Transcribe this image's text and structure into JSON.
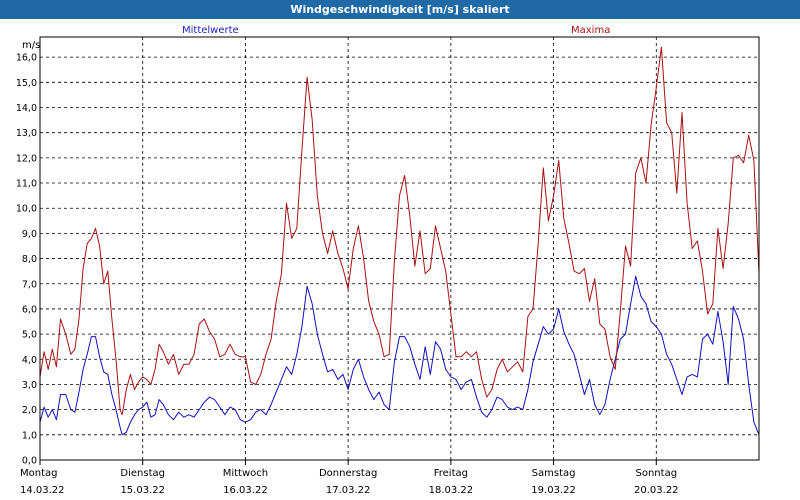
{
  "chart_data": {
    "type": "line",
    "title": "Windgeschwindigkeit [m/s] skaliert",
    "ylabel": "m/s",
    "ylim": [
      0,
      16.8
    ],
    "yticks": [
      "0,0",
      "1,0",
      "2,0",
      "3,0",
      "4,0",
      "5,0",
      "6,0",
      "7,0",
      "8,0",
      "9,0",
      "10,0",
      "11,0",
      "12,0",
      "13,0",
      "14,0",
      "15,0",
      "16,0"
    ],
    "xlim": [
      0,
      7
    ],
    "x_day_labels": [
      {
        "day": "Montag",
        "date": "14.03.22"
      },
      {
        "day": "Dienstag",
        "date": "15.03.22"
      },
      {
        "day": "Mittwoch",
        "date": "16.03.22"
      },
      {
        "day": "Donnerstag",
        "date": "17.03.22"
      },
      {
        "day": "Freitag",
        "date": "18.03.22"
      },
      {
        "day": "Samstag",
        "date": "19.03.22"
      },
      {
        "day": "Sonntag",
        "date": "20.03.22"
      }
    ],
    "grid": true,
    "legend_placement": "top",
    "series": [
      {
        "name": "Mittelwerte",
        "color": "#1010c0",
        "points": [
          [
            0,
            1.5
          ],
          [
            0.04,
            2.1
          ],
          [
            0.08,
            1.7
          ],
          [
            0.12,
            2.0
          ],
          [
            0.16,
            1.6
          ],
          [
            0.2,
            2.6
          ],
          [
            0.25,
            2.6
          ],
          [
            0.3,
            2.0
          ],
          [
            0.34,
            1.9
          ],
          [
            0.38,
            2.7
          ],
          [
            0.42,
            3.6
          ],
          [
            0.46,
            4.2
          ],
          [
            0.5,
            4.9
          ],
          [
            0.54,
            4.9
          ],
          [
            0.58,
            4.1
          ],
          [
            0.62,
            3.5
          ],
          [
            0.66,
            3.4
          ],
          [
            0.7,
            2.6
          ],
          [
            0.74,
            2.0
          ],
          [
            0.78,
            1.3
          ],
          [
            0.8,
            1.0
          ],
          [
            0.84,
            1.1
          ],
          [
            0.88,
            1.5
          ],
          [
            0.92,
            1.8
          ],
          [
            0.96,
            2.0
          ],
          [
            1.0,
            2.1
          ],
          [
            1.04,
            2.3
          ],
          [
            1.08,
            1.7
          ],
          [
            1.12,
            1.8
          ],
          [
            1.16,
            2.4
          ],
          [
            1.2,
            2.2
          ],
          [
            1.25,
            1.8
          ],
          [
            1.3,
            1.6
          ],
          [
            1.35,
            1.9
          ],
          [
            1.4,
            1.7
          ],
          [
            1.45,
            1.8
          ],
          [
            1.5,
            1.7
          ],
          [
            1.55,
            2.0
          ],
          [
            1.6,
            2.3
          ],
          [
            1.65,
            2.5
          ],
          [
            1.7,
            2.4
          ],
          [
            1.75,
            2.1
          ],
          [
            1.8,
            1.8
          ],
          [
            1.85,
            2.1
          ],
          [
            1.9,
            2.0
          ],
          [
            1.95,
            1.6
          ],
          [
            2.0,
            1.5
          ],
          [
            2.05,
            1.6
          ],
          [
            2.1,
            1.9
          ],
          [
            2.15,
            2.0
          ],
          [
            2.2,
            1.8
          ],
          [
            2.25,
            2.2
          ],
          [
            2.3,
            2.7
          ],
          [
            2.35,
            3.2
          ],
          [
            2.4,
            3.7
          ],
          [
            2.45,
            3.4
          ],
          [
            2.5,
            4.2
          ],
          [
            2.55,
            5.3
          ],
          [
            2.6,
            6.9
          ],
          [
            2.65,
            6.2
          ],
          [
            2.7,
            5.0
          ],
          [
            2.75,
            4.2
          ],
          [
            2.8,
            3.5
          ],
          [
            2.85,
            3.6
          ],
          [
            2.9,
            3.2
          ],
          [
            2.95,
            3.4
          ],
          [
            3.0,
            2.8
          ],
          [
            3.05,
            3.6
          ],
          [
            3.1,
            4.0
          ],
          [
            3.15,
            3.3
          ],
          [
            3.2,
            2.8
          ],
          [
            3.25,
            2.4
          ],
          [
            3.3,
            2.7
          ],
          [
            3.35,
            2.2
          ],
          [
            3.4,
            2.0
          ],
          [
            3.45,
            3.9
          ],
          [
            3.5,
            4.9
          ],
          [
            3.55,
            4.9
          ],
          [
            3.6,
            4.5
          ],
          [
            3.65,
            3.8
          ],
          [
            3.7,
            3.2
          ],
          [
            3.75,
            4.5
          ],
          [
            3.8,
            3.4
          ],
          [
            3.85,
            4.7
          ],
          [
            3.9,
            4.4
          ],
          [
            3.95,
            3.6
          ],
          [
            4.0,
            3.3
          ],
          [
            4.05,
            3.2
          ],
          [
            4.1,
            2.8
          ],
          [
            4.15,
            3.1
          ],
          [
            4.2,
            3.2
          ],
          [
            4.25,
            2.5
          ],
          [
            4.3,
            1.9
          ],
          [
            4.35,
            1.7
          ],
          [
            4.4,
            2.0
          ],
          [
            4.45,
            2.5
          ],
          [
            4.5,
            2.4
          ],
          [
            4.55,
            2.1
          ],
          [
            4.6,
            2.0
          ],
          [
            4.65,
            2.1
          ],
          [
            4.7,
            2.0
          ],
          [
            4.75,
            2.8
          ],
          [
            4.8,
            3.9
          ],
          [
            4.85,
            4.6
          ],
          [
            4.9,
            5.3
          ],
          [
            4.95,
            5.0
          ],
          [
            5.0,
            5.2
          ],
          [
            5.05,
            6.0
          ],
          [
            5.1,
            5.1
          ],
          [
            5.15,
            4.6
          ],
          [
            5.2,
            4.2
          ],
          [
            5.25,
            3.4
          ],
          [
            5.3,
            2.6
          ],
          [
            5.35,
            3.2
          ],
          [
            5.4,
            2.2
          ],
          [
            5.45,
            1.8
          ],
          [
            5.5,
            2.2
          ],
          [
            5.55,
            3.2
          ],
          [
            5.6,
            4.0
          ],
          [
            5.65,
            4.8
          ],
          [
            5.7,
            5.0
          ],
          [
            5.75,
            6.2
          ],
          [
            5.8,
            7.3
          ],
          [
            5.85,
            6.5
          ],
          [
            5.9,
            6.2
          ],
          [
            5.95,
            5.5
          ],
          [
            6.0,
            5.3
          ],
          [
            6.05,
            5.0
          ],
          [
            6.1,
            4.2
          ],
          [
            6.15,
            3.8
          ],
          [
            6.2,
            3.2
          ],
          [
            6.25,
            2.6
          ],
          [
            6.3,
            3.3
          ],
          [
            6.35,
            3.4
          ],
          [
            6.4,
            3.3
          ],
          [
            6.45,
            4.8
          ],
          [
            6.5,
            5.0
          ],
          [
            6.55,
            4.6
          ],
          [
            6.6,
            5.9
          ],
          [
            6.65,
            4.7
          ],
          [
            6.7,
            3.0
          ],
          [
            6.75,
            6.1
          ],
          [
            6.8,
            5.6
          ],
          [
            6.85,
            4.8
          ],
          [
            6.9,
            3.0
          ],
          [
            6.95,
            1.5
          ],
          [
            7.0,
            1.0
          ]
        ]
      },
      {
        "name": "Maxima",
        "color": "#aa1010",
        "points": [
          [
            0,
            3.3
          ],
          [
            0.04,
            4.3
          ],
          [
            0.08,
            3.6
          ],
          [
            0.12,
            4.4
          ],
          [
            0.16,
            3.7
          ],
          [
            0.2,
            5.6
          ],
          [
            0.25,
            5.0
          ],
          [
            0.3,
            4.2
          ],
          [
            0.34,
            4.4
          ],
          [
            0.38,
            5.6
          ],
          [
            0.42,
            7.6
          ],
          [
            0.46,
            8.6
          ],
          [
            0.5,
            8.8
          ],
          [
            0.54,
            9.2
          ],
          [
            0.58,
            8.5
          ],
          [
            0.62,
            7.0
          ],
          [
            0.66,
            7.5
          ],
          [
            0.7,
            5.6
          ],
          [
            0.74,
            4.0
          ],
          [
            0.78,
            2.0
          ],
          [
            0.8,
            1.8
          ],
          [
            0.84,
            2.8
          ],
          [
            0.88,
            3.4
          ],
          [
            0.92,
            2.8
          ],
          [
            0.96,
            3.1
          ],
          [
            1.0,
            3.3
          ],
          [
            1.04,
            3.2
          ],
          [
            1.08,
            3.0
          ],
          [
            1.12,
            3.6
          ],
          [
            1.16,
            4.6
          ],
          [
            1.2,
            4.3
          ],
          [
            1.25,
            3.8
          ],
          [
            1.3,
            4.2
          ],
          [
            1.35,
            3.4
          ],
          [
            1.4,
            3.8
          ],
          [
            1.45,
            3.8
          ],
          [
            1.5,
            4.2
          ],
          [
            1.55,
            5.4
          ],
          [
            1.6,
            5.6
          ],
          [
            1.65,
            5.1
          ],
          [
            1.7,
            4.8
          ],
          [
            1.75,
            4.1
          ],
          [
            1.8,
            4.2
          ],
          [
            1.85,
            4.6
          ],
          [
            1.9,
            4.2
          ],
          [
            1.95,
            4.1
          ],
          [
            2.0,
            4.1
          ],
          [
            2.05,
            3.1
          ],
          [
            2.1,
            3.0
          ],
          [
            2.15,
            3.4
          ],
          [
            2.2,
            4.2
          ],
          [
            2.25,
            4.8
          ],
          [
            2.3,
            6.3
          ],
          [
            2.35,
            7.4
          ],
          [
            2.4,
            10.2
          ],
          [
            2.45,
            8.8
          ],
          [
            2.5,
            9.2
          ],
          [
            2.55,
            12.3
          ],
          [
            2.6,
            15.2
          ],
          [
            2.65,
            13.5
          ],
          [
            2.7,
            10.5
          ],
          [
            2.75,
            9.0
          ],
          [
            2.8,
            8.2
          ],
          [
            2.85,
            9.1
          ],
          [
            2.9,
            8.2
          ],
          [
            2.95,
            7.6
          ],
          [
            3.0,
            6.8
          ],
          [
            3.05,
            8.4
          ],
          [
            3.1,
            9.3
          ],
          [
            3.15,
            8.0
          ],
          [
            3.2,
            6.3
          ],
          [
            3.25,
            5.5
          ],
          [
            3.3,
            5.0
          ],
          [
            3.35,
            4.1
          ],
          [
            3.4,
            4.2
          ],
          [
            3.45,
            7.9
          ],
          [
            3.5,
            10.5
          ],
          [
            3.55,
            11.3
          ],
          [
            3.6,
            9.7
          ],
          [
            3.65,
            7.7
          ],
          [
            3.7,
            9.1
          ],
          [
            3.75,
            7.4
          ],
          [
            3.8,
            7.6
          ],
          [
            3.85,
            9.3
          ],
          [
            3.9,
            8.4
          ],
          [
            3.95,
            7.5
          ],
          [
            4.0,
            5.8
          ],
          [
            4.05,
            4.1
          ],
          [
            4.1,
            4.1
          ],
          [
            4.15,
            4.3
          ],
          [
            4.2,
            4.1
          ],
          [
            4.25,
            4.3
          ],
          [
            4.3,
            3.2
          ],
          [
            4.35,
            2.5
          ],
          [
            4.4,
            2.8
          ],
          [
            4.45,
            3.6
          ],
          [
            4.5,
            4.0
          ],
          [
            4.55,
            3.5
          ],
          [
            4.6,
            3.7
          ],
          [
            4.65,
            3.9
          ],
          [
            4.7,
            3.5
          ],
          [
            4.75,
            5.7
          ],
          [
            4.8,
            6.0
          ],
          [
            4.85,
            8.6
          ],
          [
            4.9,
            11.6
          ],
          [
            4.95,
            9.5
          ],
          [
            5.0,
            10.5
          ],
          [
            5.05,
            11.9
          ],
          [
            5.1,
            9.6
          ],
          [
            5.15,
            8.6
          ],
          [
            5.2,
            7.5
          ],
          [
            5.25,
            7.4
          ],
          [
            5.3,
            7.6
          ],
          [
            5.35,
            6.3
          ],
          [
            5.4,
            7.2
          ],
          [
            5.45,
            5.4
          ],
          [
            5.5,
            5.2
          ],
          [
            5.55,
            4.1
          ],
          [
            5.6,
            3.6
          ],
          [
            5.65,
            5.9
          ],
          [
            5.7,
            8.5
          ],
          [
            5.75,
            7.7
          ],
          [
            5.8,
            11.4
          ],
          [
            5.85,
            12.0
          ],
          [
            5.9,
            11.0
          ],
          [
            5.95,
            13.3
          ],
          [
            6.0,
            14.8
          ],
          [
            6.05,
            16.4
          ],
          [
            6.1,
            13.4
          ],
          [
            6.15,
            13.0
          ],
          [
            6.2,
            10.6
          ],
          [
            6.25,
            13.8
          ],
          [
            6.3,
            10.2
          ],
          [
            6.35,
            8.4
          ],
          [
            6.4,
            8.7
          ],
          [
            6.45,
            7.5
          ],
          [
            6.5,
            5.8
          ],
          [
            6.55,
            6.2
          ],
          [
            6.6,
            9.2
          ],
          [
            6.65,
            7.6
          ],
          [
            6.7,
            9.4
          ],
          [
            6.75,
            12.0
          ],
          [
            6.8,
            12.1
          ],
          [
            6.85,
            11.8
          ],
          [
            6.9,
            12.9
          ],
          [
            6.95,
            11.9
          ],
          [
            7.0,
            7.4
          ]
        ]
      }
    ]
  }
}
